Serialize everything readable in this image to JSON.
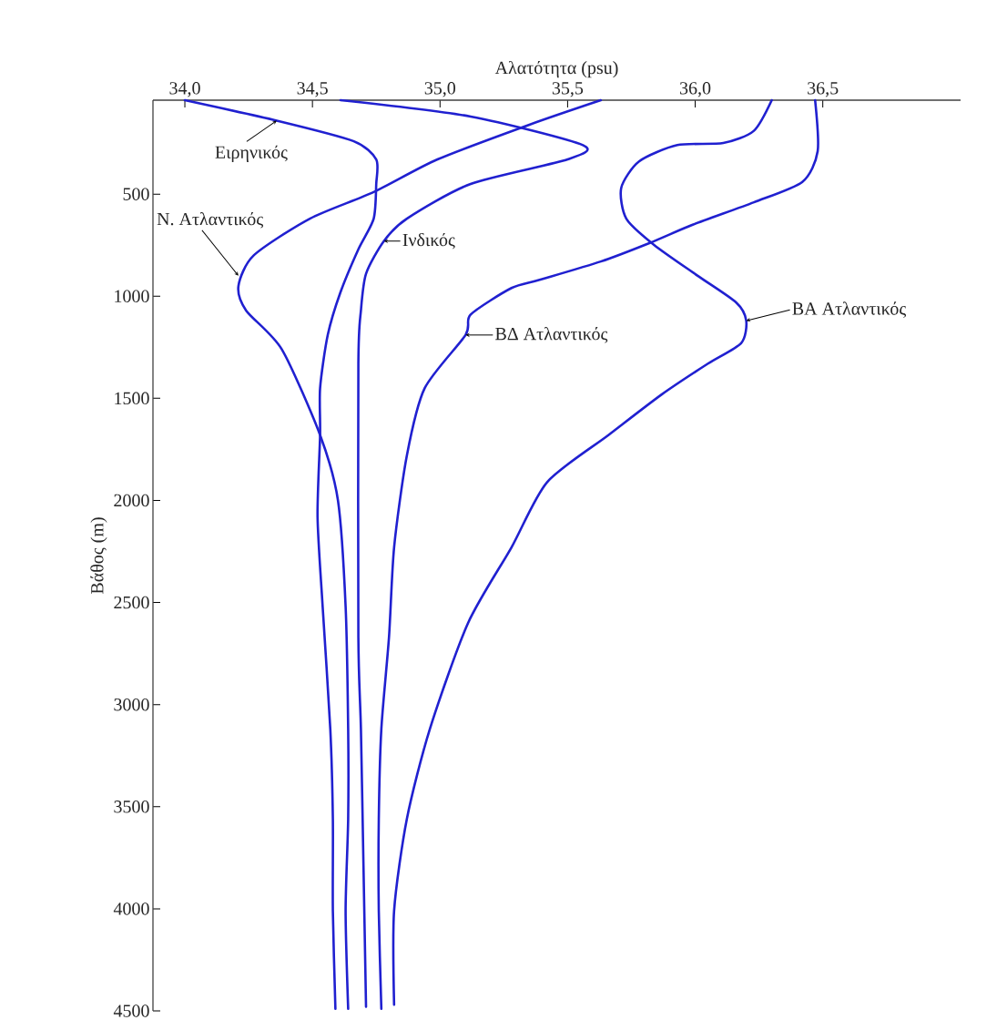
{
  "chart_data": {
    "type": "line",
    "xlabel": "Αλατότητα (psu)",
    "ylabel": "Βάθος (m)",
    "xlim": [
      33.875,
      37.04
    ],
    "ylim": [
      4500,
      40
    ],
    "xticks": [
      {
        "value": 34,
        "label": "34,0"
      },
      {
        "value": 34.5,
        "label": "34,5"
      },
      {
        "value": 35,
        "label": "35,0"
      },
      {
        "value": 35.5,
        "label": "35,5"
      },
      {
        "value": 36,
        "label": "36,0"
      },
      {
        "value": 36.5,
        "label": "36,5"
      }
    ],
    "yticks": [
      500,
      1000,
      1500,
      2000,
      2500,
      3000,
      3500,
      4000,
      4500
    ],
    "series": [
      {
        "color": "#2020d0",
        "x": [
          34.0,
          34.36,
          34.66,
          34.75,
          34.75,
          34.74,
          34.68,
          34.61,
          34.56,
          34.53,
          34.53,
          34.52,
          34.54,
          34.57,
          34.58,
          34.58,
          34.59
        ],
        "values": [
          40,
          140,
          240,
          330,
          450,
          620,
          770,
          980,
          1190,
          1450,
          1680,
          2080,
          2520,
          3120,
          3560,
          4010,
          4490
        ]
      },
      {
        "color": "#2020d0",
        "x": [
          34.61,
          35.12,
          35.56,
          35.5,
          35.12,
          34.87,
          34.78,
          34.71,
          34.69,
          34.68,
          34.68,
          34.69,
          34.7,
          34.71
        ],
        "values": [
          40,
          120,
          260,
          330,
          450,
          620,
          730,
          890,
          1070,
          1330,
          2670,
          3120,
          3790,
          4480
        ]
      },
      {
        "color": "#2020d0",
        "x": [
          35.63,
          35.35,
          34.99,
          34.74,
          34.49,
          34.27,
          34.21,
          34.24,
          34.38,
          34.53,
          34.6,
          34.63,
          34.64,
          34.64,
          34.63,
          34.64
        ],
        "values": [
          40,
          160,
          330,
          490,
          620,
          800,
          950,
          1070,
          1260,
          1680,
          2000,
          2520,
          3120,
          3560,
          4010,
          4490
        ]
      },
      {
        "color": "#2020d0",
        "x": [
          36.47,
          36.48,
          36.42,
          36.23,
          35.99,
          35.82,
          35.63,
          35.39,
          35.28,
          35.12,
          35.1,
          34.94,
          34.87,
          34.82,
          34.8,
          34.77,
          34.76,
          34.76,
          34.77
        ],
        "values": [
          40,
          290,
          440,
          540,
          650,
          740,
          830,
          920,
          960,
          1090,
          1190,
          1450,
          1780,
          2230,
          2670,
          3120,
          3560,
          4010,
          4490
        ]
      },
      {
        "color": "#2020d0",
        "x": [
          36.3,
          36.23,
          36.11,
          35.93,
          35.78,
          35.71,
          35.73,
          35.84,
          36.01,
          36.16,
          36.2,
          36.18,
          36.05,
          35.87,
          35.66,
          35.42,
          35.28,
          35.11,
          34.96,
          34.87,
          34.82,
          34.82
        ],
        "values": [
          40,
          190,
          250,
          260,
          340,
          470,
          620,
          750,
          900,
          1030,
          1120,
          1230,
          1330,
          1480,
          1680,
          1910,
          2230,
          2600,
          3120,
          3560,
          4010,
          4470
        ]
      }
    ],
    "annotations": [
      {
        "text": "Ειρηνικός",
        "x": 34.36,
        "y": 140
      },
      {
        "text": "Ν. Ατλαντικός",
        "x": 34.21,
        "y": 900
      },
      {
        "text": "Ινδικός",
        "x": 34.78,
        "y": 730
      },
      {
        "text": "ΒΔ Ατλαντικός",
        "x": 35.1,
        "y": 1190
      },
      {
        "text": "ΒΑ Ατλαντικός",
        "x": 36.2,
        "y": 1120
      }
    ]
  }
}
